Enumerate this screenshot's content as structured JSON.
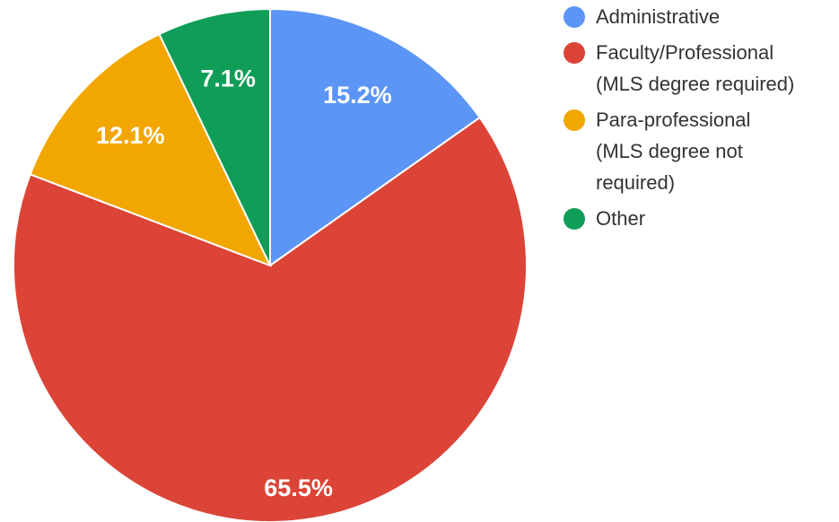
{
  "chart_data": {
    "type": "pie",
    "categories": [
      "Administrative",
      "Faculty/Professional (MLS degree required)",
      "Para-professional (MLS degree not required)",
      "Other"
    ],
    "values": [
      15.2,
      65.5,
      12.1,
      7.1
    ],
    "value_labels": [
      "15.2%",
      "65.5%",
      "12.1%",
      "7.1%"
    ],
    "colors": [
      "#5b95f5",
      "#db4437",
      "#f2a600",
      "#109d58"
    ]
  }
}
